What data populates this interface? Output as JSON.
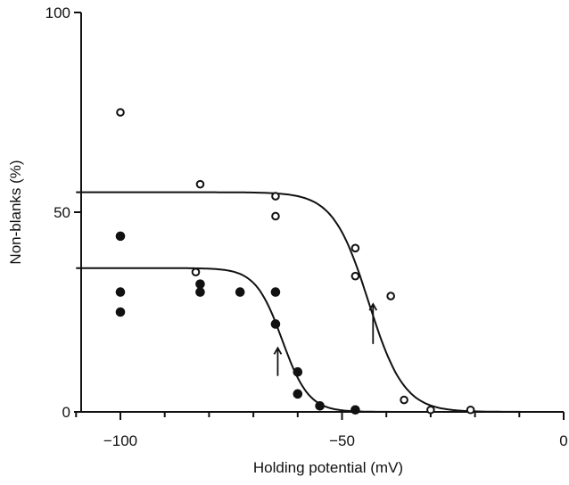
{
  "chart_data": {
    "type": "scatter",
    "title": "",
    "xlabel": "Holding potential (mV)",
    "ylabel": "Non-blanks (%)",
    "xlim": [
      -110,
      0
    ],
    "ylim": [
      0,
      100
    ],
    "x_ticks": [
      -100,
      -50,
      0
    ],
    "x_tick_labels": [
      "−100",
      "−50",
      "0"
    ],
    "y_ticks": [
      0,
      50,
      100
    ],
    "y_tick_labels": [
      "0",
      "50",
      "100"
    ],
    "grid": false,
    "legend": "none",
    "series": [
      {
        "marker": "open-circle",
        "points": [
          {
            "x": -100,
            "y": 75
          },
          {
            "x": -82,
            "y": 57
          },
          {
            "x": -65,
            "y": 54
          },
          {
            "x": -65,
            "y": 49
          },
          {
            "x": -47,
            "y": 41
          },
          {
            "x": -47,
            "y": 34
          },
          {
            "x": -83,
            "y": 35
          },
          {
            "x": -39,
            "y": 29
          },
          {
            "x": -36,
            "y": 3
          },
          {
            "x": -30,
            "y": 0.5
          },
          {
            "x": -21,
            "y": 0.5
          }
        ],
        "fit_curve": {
          "top": 55,
          "midpoint": -44,
          "slope": 4
        }
      },
      {
        "marker": "filled-circle",
        "points": [
          {
            "x": -100,
            "y": 44
          },
          {
            "x": -100,
            "y": 30
          },
          {
            "x": -100,
            "y": 25
          },
          {
            "x": -82,
            "y": 32
          },
          {
            "x": -82,
            "y": 30
          },
          {
            "x": -73,
            "y": 30
          },
          {
            "x": -65,
            "y": 30
          },
          {
            "x": -65,
            "y": 22
          },
          {
            "x": -60,
            "y": 10
          },
          {
            "x": -60,
            "y": 4.5
          },
          {
            "x": -55,
            "y": 1.5
          },
          {
            "x": -47,
            "y": 0.5
          }
        ],
        "fit_curve": {
          "top": 36,
          "midpoint": -63.5,
          "slope": 3
        }
      }
    ],
    "annotations": [
      {
        "type": "arrow",
        "x": -43,
        "y_tail": 17,
        "y_head": 27
      },
      {
        "type": "arrow",
        "x": -64.5,
        "y_tail": 9,
        "y_head": 16
      }
    ]
  }
}
